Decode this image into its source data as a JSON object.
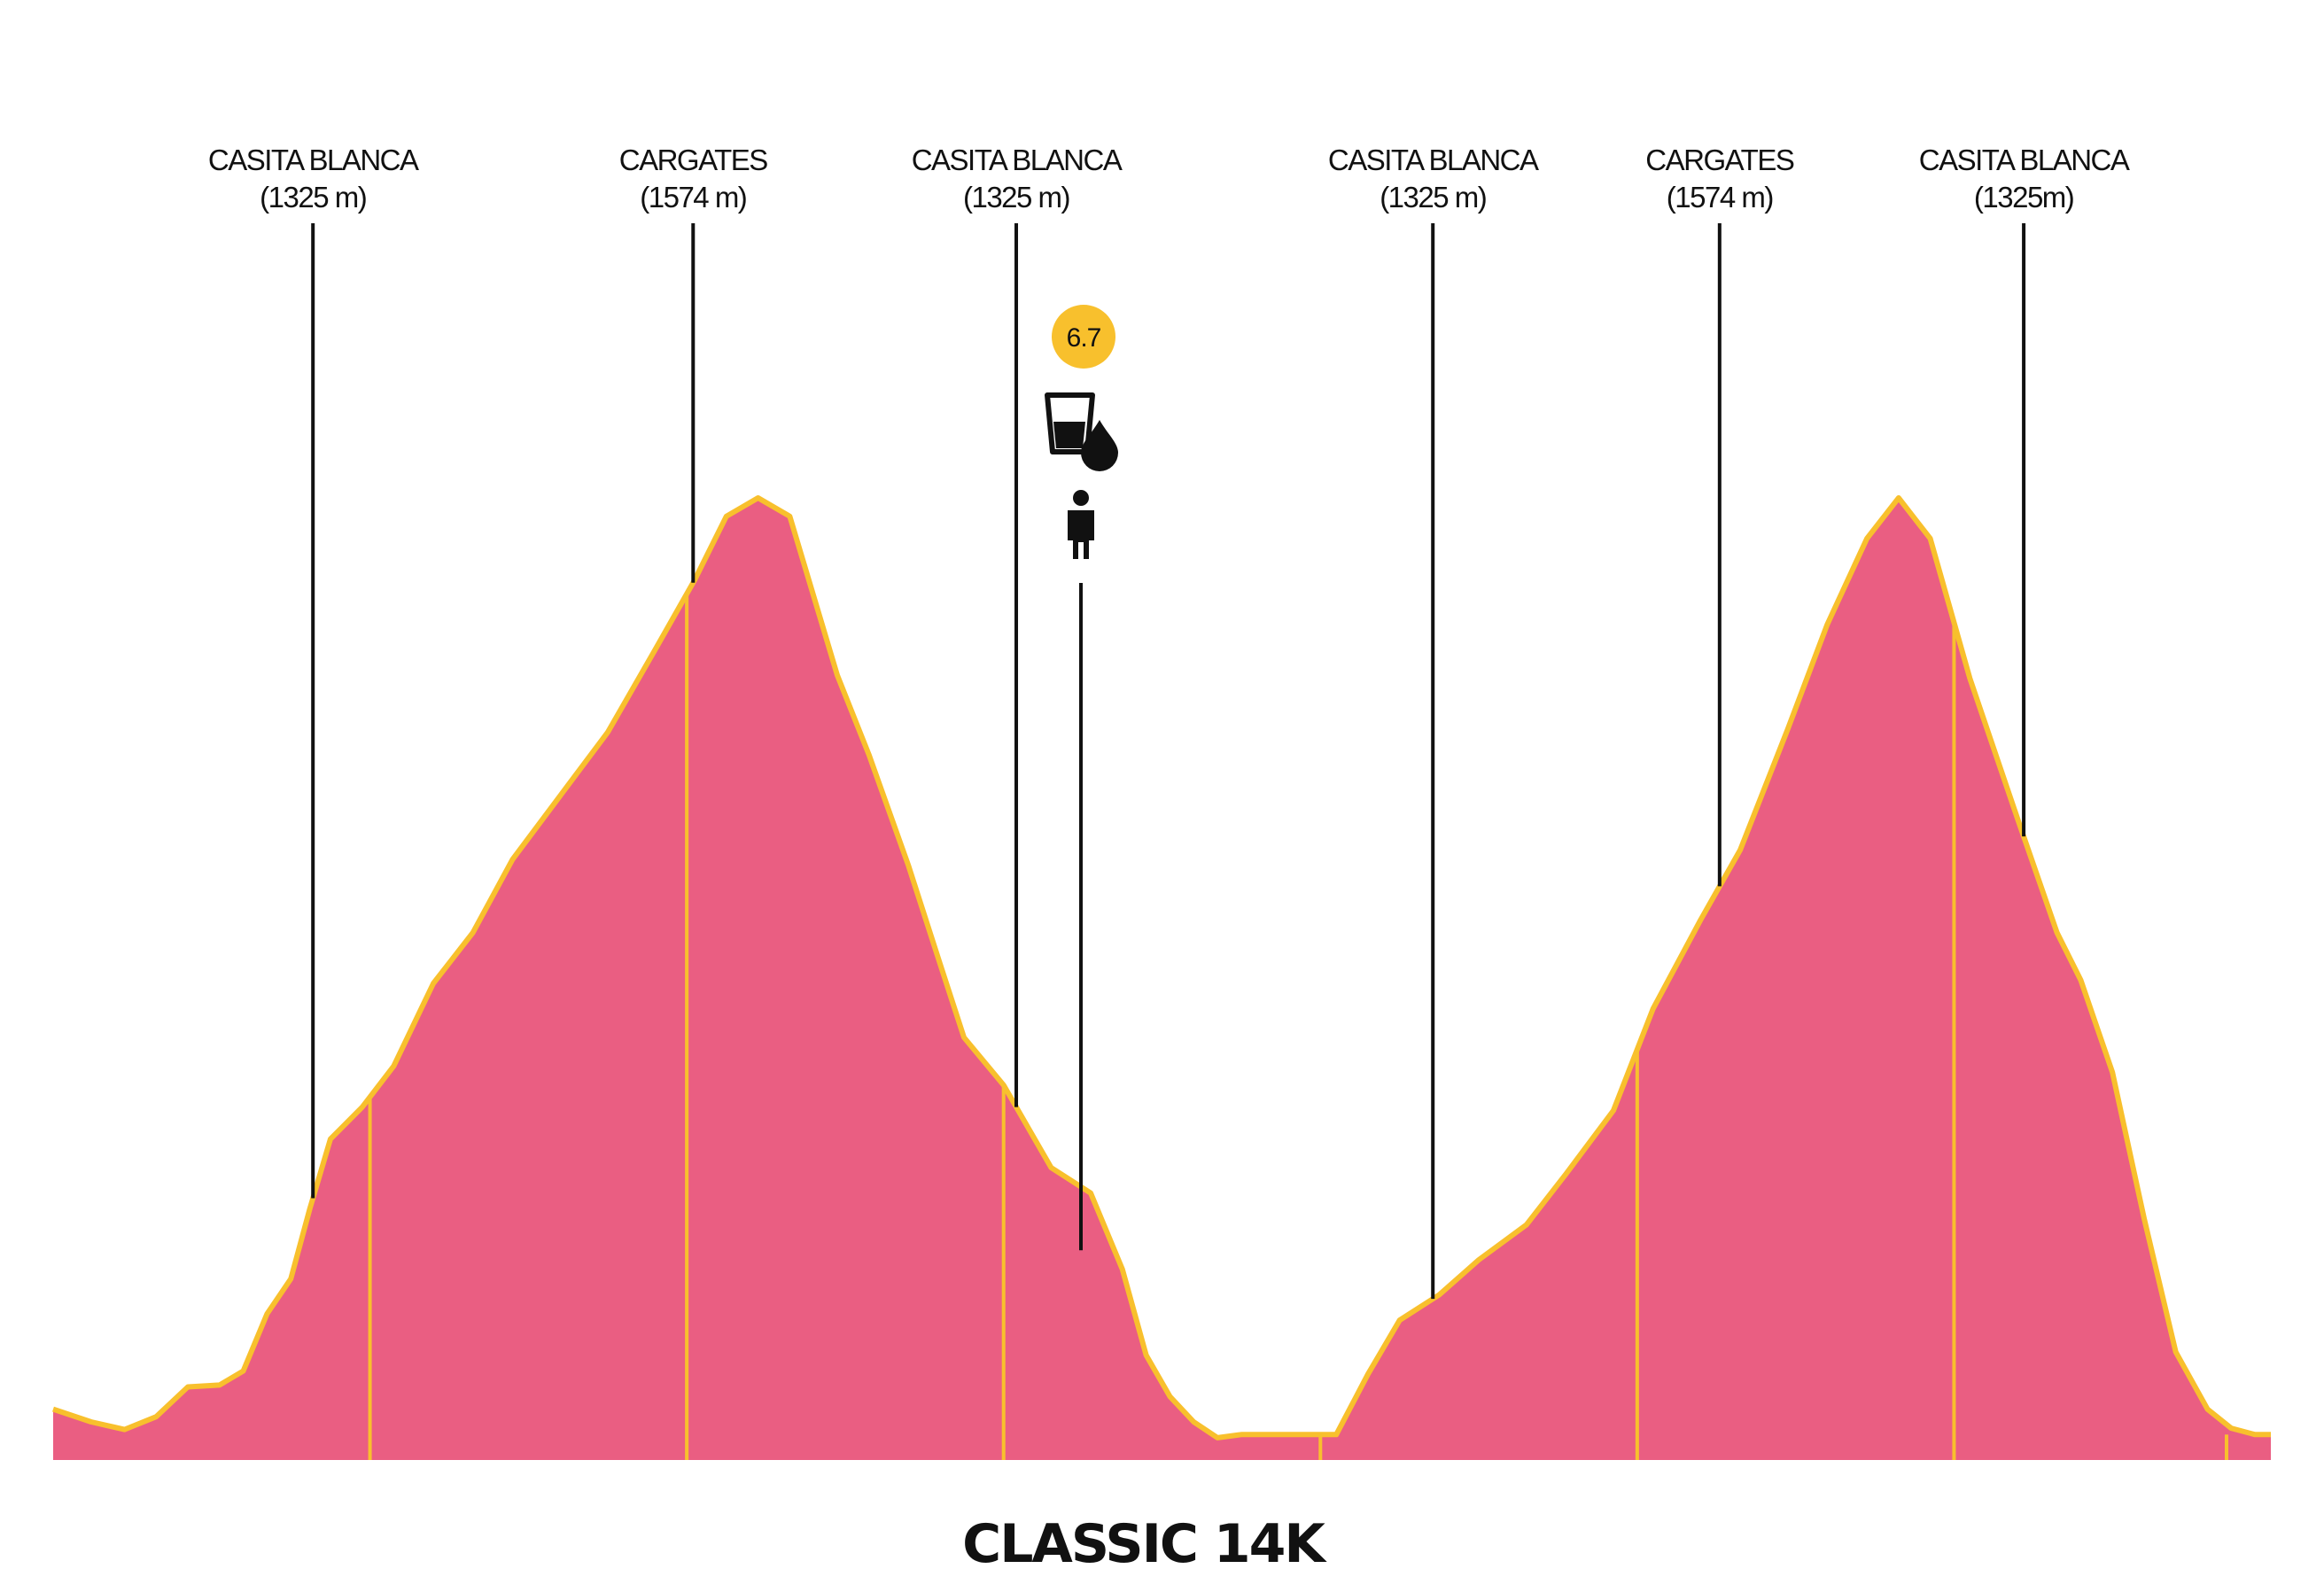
{
  "chart_data": {
    "type": "area",
    "title": "CLASSIC 14K",
    "xlabel": "",
    "ylabel": "",
    "grid": false,
    "colors": {
      "fill": "#EA5E82",
      "stroke": "#F8C02D",
      "marker": "#111111",
      "badge": "#F8C02D"
    },
    "xlim": [
      0,
      14
    ],
    "ylim": [
      0,
      1574
    ],
    "profile": [
      [
        0.0,
        140
      ],
      [
        0.24,
        120
      ],
      [
        0.45,
        108
      ],
      [
        0.65,
        128
      ],
      [
        0.85,
        175
      ],
      [
        1.05,
        178
      ],
      [
        1.2,
        200
      ],
      [
        1.35,
        290
      ],
      [
        1.5,
        345
      ],
      [
        1.62,
        455
      ],
      [
        1.75,
        565
      ],
      [
        1.95,
        615
      ],
      [
        2.15,
        680
      ],
      [
        2.4,
        810
      ],
      [
        2.65,
        890
      ],
      [
        2.9,
        1005
      ],
      [
        3.2,
        1105
      ],
      [
        3.5,
        1205
      ],
      [
        3.8,
        1335
      ],
      [
        4.05,
        1445
      ],
      [
        4.25,
        1545
      ],
      [
        4.45,
        1574
      ],
      [
        4.65,
        1545
      ],
      [
        4.95,
        1295
      ],
      [
        5.15,
        1170
      ],
      [
        5.4,
        995
      ],
      [
        5.6,
        840
      ],
      [
        5.75,
        725
      ],
      [
        6.0,
        650
      ],
      [
        6.3,
        520
      ],
      [
        6.55,
        480
      ],
      [
        6.75,
        360
      ],
      [
        6.9,
        225
      ],
      [
        7.05,
        160
      ],
      [
        7.2,
        120
      ],
      [
        7.35,
        95
      ],
      [
        7.5,
        100
      ],
      [
        7.9,
        100
      ],
      [
        8.1,
        100
      ],
      [
        8.3,
        195
      ],
      [
        8.5,
        280
      ],
      [
        8.75,
        320
      ],
      [
        9.0,
        375
      ],
      [
        9.3,
        430
      ],
      [
        9.55,
        510
      ],
      [
        9.85,
        610
      ],
      [
        10.1,
        770
      ],
      [
        10.4,
        910
      ],
      [
        10.65,
        1020
      ],
      [
        10.95,
        1210
      ],
      [
        11.2,
        1375
      ],
      [
        11.45,
        1510
      ],
      [
        11.65,
        1574
      ],
      [
        11.85,
        1510
      ],
      [
        12.1,
        1290
      ],
      [
        12.4,
        1070
      ],
      [
        12.65,
        890
      ],
      [
        12.8,
        815
      ],
      [
        13.0,
        670
      ],
      [
        13.2,
        440
      ],
      [
        13.4,
        230
      ],
      [
        13.6,
        140
      ],
      [
        13.75,
        110
      ],
      [
        13.9,
        100
      ],
      [
        14.0,
        100
      ]
    ],
    "waypoints": [
      {
        "name": "CASITA BLANCA",
        "elevation": "(1325 m)",
        "km": 1.64
      },
      {
        "name": "CARGATES",
        "elevation": "(1574 m)",
        "km": 4.04
      },
      {
        "name": "CASITA BLANCA",
        "elevation": "(1325 m)",
        "km": 6.08
      },
      {
        "name": "CASITA BLANCA",
        "elevation": "(1325 m)",
        "km": 8.71
      },
      {
        "name": "CARGATES",
        "elevation": "(1574 m)",
        "km": 10.52
      },
      {
        "name": "CASITA BLANCA",
        "elevation": "(1325m)",
        "km": 12.44
      }
    ],
    "km_markers": [
      2,
      4,
      6,
      8,
      10,
      12,
      14
    ],
    "aid_station": {
      "km": 6.7,
      "label": "6.7",
      "icons": [
        "water-glass-icon",
        "water-drop-icon",
        "person-icon"
      ]
    }
  }
}
